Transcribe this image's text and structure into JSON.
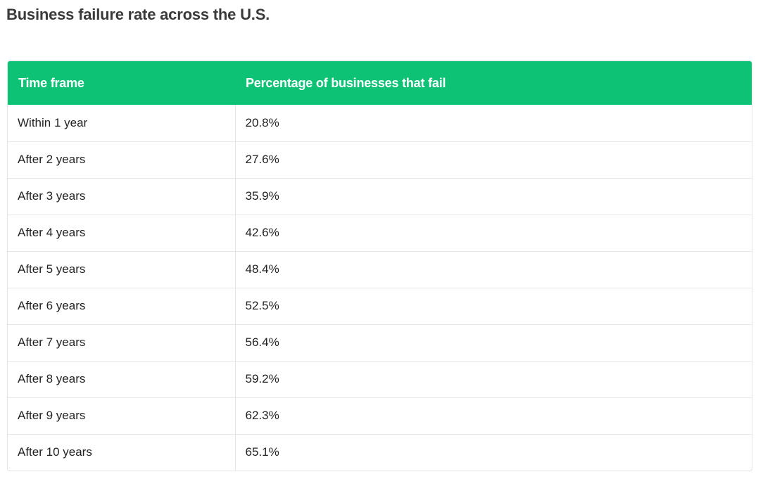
{
  "title": "Business failure rate across the U.S.",
  "table": {
    "header_color": "#0dc275",
    "columns": [
      "Time frame",
      "Percentage of businesses that fail"
    ],
    "rows": [
      [
        "Within 1 year",
        "20.8%"
      ],
      [
        "After 2 years",
        "27.6%"
      ],
      [
        "After 3 years",
        "35.9%"
      ],
      [
        "After 4 years",
        "42.6%"
      ],
      [
        "After 5 years",
        "48.4%"
      ],
      [
        "After 6 years",
        "52.5%"
      ],
      [
        "After 7 years",
        "56.4%"
      ],
      [
        "After 8 years",
        "59.2%"
      ],
      [
        "After 9 years",
        "62.3%"
      ],
      [
        "After 10 years",
        "65.1%"
      ]
    ]
  }
}
